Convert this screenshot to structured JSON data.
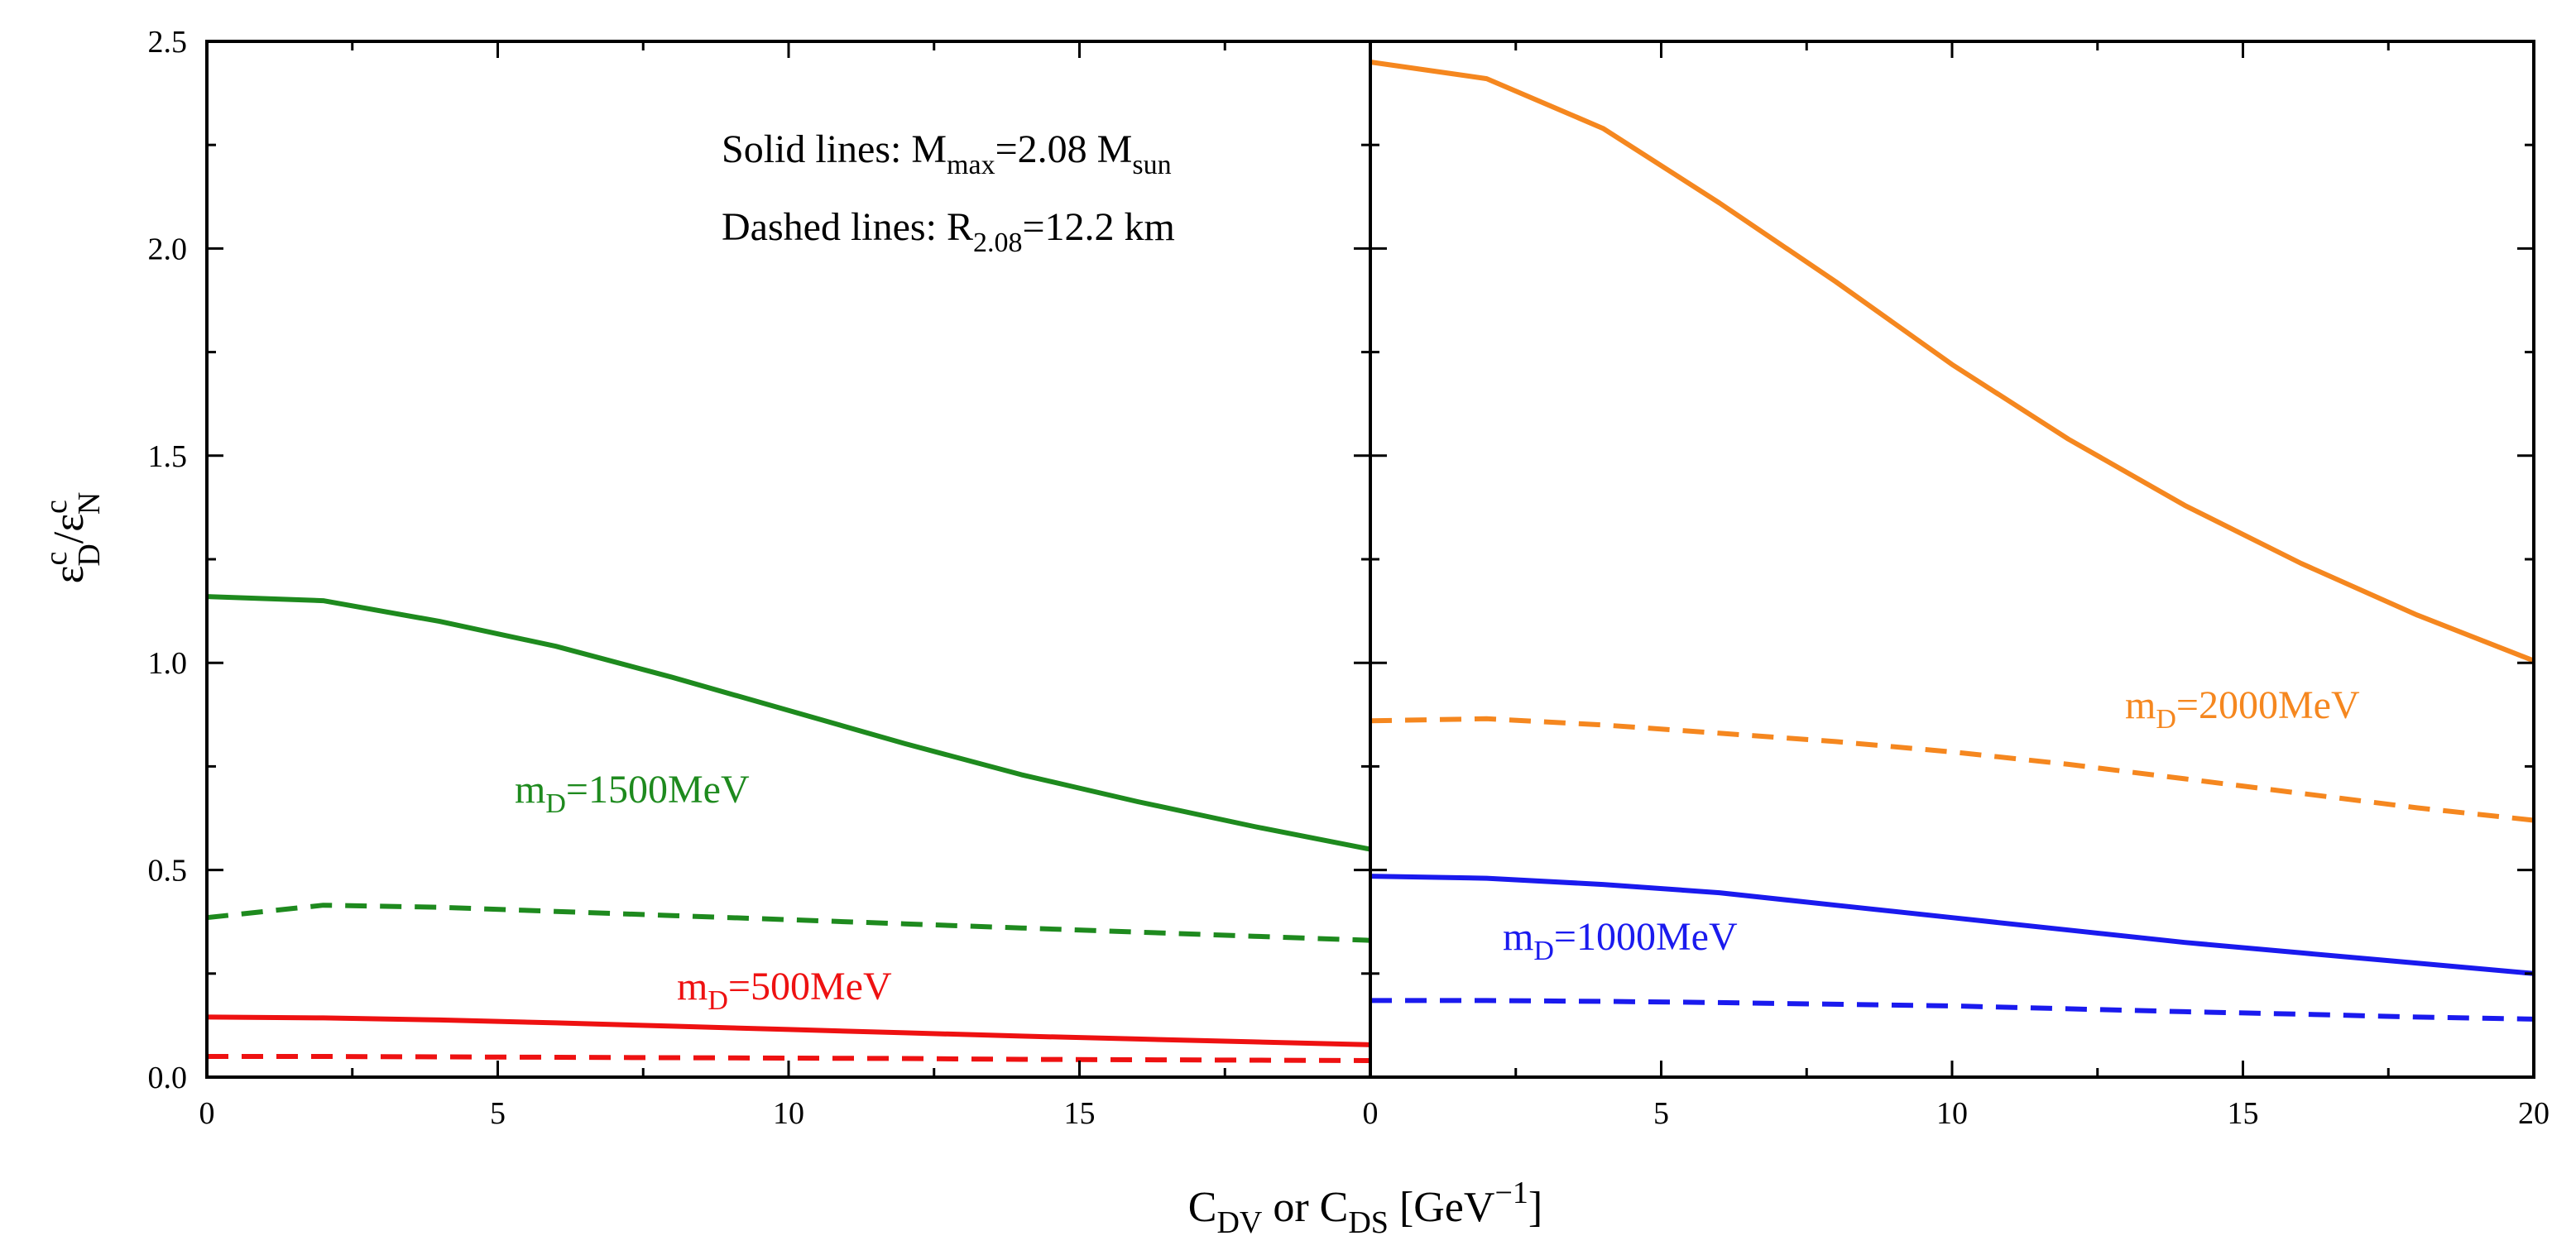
{
  "chart_data": {
    "type": "line",
    "panels": [
      {
        "name": "left",
        "xlim": [
          0,
          20
        ],
        "ylim": [
          0,
          2.5
        ],
        "series": [
          {
            "label_id": "m1500",
            "color": "#1e8a1e",
            "style": "solid",
            "x": [
              0,
              2,
              4,
              6,
              8,
              10,
              12,
              14,
              16,
              18,
              20
            ],
            "y": [
              1.16,
              1.15,
              1.1,
              1.04,
              0.965,
              0.885,
              0.805,
              0.73,
              0.665,
              0.605,
              0.55
            ]
          },
          {
            "label_id": "m1500",
            "color": "#1e8a1e",
            "style": "dashed",
            "x": [
              0,
              2,
              4,
              6,
              8,
              10,
              12,
              14,
              16,
              18,
              20
            ],
            "y": [
              0.385,
              0.415,
              0.41,
              0.4,
              0.39,
              0.38,
              0.37,
              0.36,
              0.35,
              0.34,
              0.33
            ]
          },
          {
            "label_id": "m500",
            "color": "#ee1111",
            "style": "solid",
            "x": [
              0,
              2,
              4,
              6,
              8,
              10,
              12,
              14,
              16,
              18,
              20
            ],
            "y": [
              0.145,
              0.143,
              0.138,
              0.131,
              0.123,
              0.115,
              0.107,
              0.099,
              0.092,
              0.085,
              0.078
            ]
          },
          {
            "label_id": "m500",
            "color": "#ee1111",
            "style": "dashed",
            "x": [
              0,
              2,
              4,
              6,
              8,
              10,
              12,
              14,
              16,
              18,
              20
            ],
            "y": [
              0.05,
              0.05,
              0.049,
              0.048,
              0.047,
              0.046,
              0.045,
              0.043,
              0.042,
              0.041,
              0.04
            ]
          }
        ]
      },
      {
        "name": "right",
        "xlim": [
          0,
          20
        ],
        "ylim": [
          0,
          2.5
        ],
        "series": [
          {
            "label_id": "m2000",
            "color": "#f5871f",
            "style": "solid",
            "x": [
              0,
              2,
              4,
              6,
              8,
              10,
              12,
              14,
              16,
              18,
              20
            ],
            "y": [
              2.45,
              2.41,
              2.29,
              2.11,
              1.92,
              1.72,
              1.54,
              1.38,
              1.24,
              1.115,
              1.005
            ]
          },
          {
            "label_id": "m2000",
            "color": "#f5871f",
            "style": "dashed",
            "x": [
              0,
              2,
              4,
              6,
              8,
              10,
              12,
              14,
              16,
              18,
              20
            ],
            "y": [
              0.86,
              0.865,
              0.85,
              0.83,
              0.81,
              0.785,
              0.755,
              0.72,
              0.685,
              0.65,
              0.62
            ]
          },
          {
            "label_id": "m1000",
            "color": "#1a1aee",
            "style": "solid",
            "x": [
              0,
              2,
              4,
              6,
              8,
              10,
              12,
              14,
              16,
              18,
              20
            ],
            "y": [
              0.485,
              0.48,
              0.465,
              0.445,
              0.415,
              0.385,
              0.355,
              0.325,
              0.3,
              0.275,
              0.25
            ]
          },
          {
            "label_id": "m1000",
            "color": "#1a1aee",
            "style": "dashed",
            "x": [
              0,
              2,
              4,
              6,
              8,
              10,
              12,
              14,
              16,
              18,
              20
            ],
            "y": [
              0.185,
              0.185,
              0.183,
              0.18,
              0.176,
              0.172,
              0.165,
              0.158,
              0.152,
              0.145,
              0.14
            ]
          }
        ]
      }
    ],
    "yticks": [
      "0.0",
      "0.5",
      "1.0",
      "1.5",
      "2.0",
      "2.5"
    ],
    "ytick_values": [
      0,
      0.5,
      1.0,
      1.5,
      2.0,
      2.5
    ],
    "xticks_left": [
      "0",
      "5",
      "10",
      "15"
    ],
    "xtick_values_left": [
      0,
      5,
      10,
      15
    ],
    "xticks_right": [
      "0",
      "5",
      "10",
      "15",
      "20"
    ],
    "xtick_values_right": [
      0,
      5,
      10,
      15,
      20
    ],
    "minor_xtick_step": 2.5,
    "minor_ytick_step": 0.25,
    "ylabel": {
      "eps1": "ε",
      "sup1": "c",
      "sub1": "D",
      "slash": "/",
      "eps2": "ε",
      "sup2": "c",
      "sub2": "N"
    },
    "xlabel": {
      "c1": "C",
      "sub1": "DV",
      "or": " or ",
      "c2": "C",
      "sub2": "DS",
      "unit": " [GeV",
      "sup": "−1",
      "close": "]"
    },
    "annotations": {
      "solid": {
        "prefix": "Solid lines: M",
        "sub1": "max",
        "mid": "=2.08 M",
        "sub2": "sun"
      },
      "dashed": {
        "prefix": "Dashed lines: R",
        "sub1": "2.08",
        "mid": "=12.2 km"
      }
    },
    "series_labels": {
      "m1500": {
        "m": "m",
        "sub": "D",
        "text": "=1500MeV"
      },
      "m500": {
        "m": "m",
        "sub": "D",
        "text": "=500MeV"
      },
      "m2000": {
        "m": "m",
        "sub": "D",
        "text": "=2000MeV"
      },
      "m1000": {
        "m": "m",
        "sub": "D",
        "text": "=1000MeV"
      }
    },
    "grid": false
  }
}
